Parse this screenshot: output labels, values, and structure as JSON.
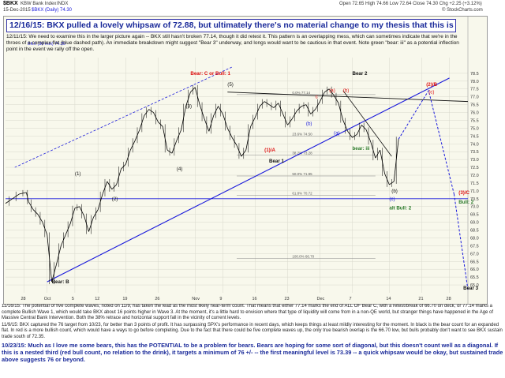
{
  "header": {
    "ticker": "$BKX",
    "name": "KBW Bank Index",
    "exchange": "INDX",
    "date": "15-Dec-2015",
    "studies": "$BKX (Daily) 74.30",
    "quote": "Open 72.65  High 74.66  Low 72.64  Close 74.30  Chg +2.25 (+3.12%)",
    "sc": "© StockCharts.com"
  },
  "banner": "12/16/15:  BKX pulled a lovely whipsaw of 72.88, but ultimately there's no material change to my thesis that this is a complex flat.",
  "annotation": "12/11/15: We need to examine this in the larger picture again -- BKX still hasn't broken 77.14, though it did retest it.  This pattern is an overlapping mess, which can sometimes indicate that we're in the throes of a complex flat (blue dashed path).  An immediate breakdown might suggest \"Bear 3\" underway, and longs would want to be cautious in that event.  Note green \"bear: iii\" as a potential inflection point in the event we rally off the open.",
  "ma_label": "BKX (30 min) 74.30",
  "colors": {
    "bg": "#f8f8ec",
    "candle": "#000000",
    "blue": "#1a1adb",
    "red": "#dd1111",
    "green": "#2a7a2a",
    "dash": "#1a1add",
    "grid": "#d8d8cc"
  },
  "chart_data": {
    "type": "line",
    "title": "",
    "xlabel": "",
    "ylabel": "",
    "xlim": [
      0,
      100
    ],
    "ylim": [
      64.5,
      79.5
    ],
    "grid": true,
    "yticks": [
      65.0,
      65.5,
      66.0,
      66.5,
      67.0,
      67.5,
      68.0,
      68.5,
      69.0,
      69.5,
      70.0,
      70.5,
      71.0,
      71.5,
      72.0,
      72.5,
      73.0,
      73.5,
      74.0,
      74.5,
      75.0,
      75.5,
      76.0,
      76.5,
      77.0,
      77.5,
      78.0,
      78.5
    ],
    "ytick_labels": [
      "65.0",
      "65.5",
      "66.0",
      "66.5",
      "67.0",
      "67.5",
      "68.0",
      "68.5",
      "69.0",
      "69.5",
      "70.0",
      "70.5",
      "71.0",
      "71.5",
      "72.0",
      "72.5",
      "73.0",
      "73.5",
      "74.0",
      "74.5",
      "75.0",
      "75.5",
      "76.0",
      "76.5",
      "77.0",
      "77.5",
      "78.0",
      "78.5"
    ],
    "xticks": [
      {
        "x": 4,
        "label": "28"
      },
      {
        "x": 9,
        "label": "Oct"
      },
      {
        "x": 15,
        "label": "5"
      },
      {
        "x": 20,
        "label": "12"
      },
      {
        "x": 26,
        "label": "19"
      },
      {
        "x": 33,
        "label": "26"
      },
      {
        "x": 41,
        "label": "Nov"
      },
      {
        "x": 47,
        "label": "9"
      },
      {
        "x": 54,
        "label": "16"
      },
      {
        "x": 61,
        "label": "23"
      },
      {
        "x": 68,
        "label": "Dec"
      },
      {
        "x": 75,
        "label": "7"
      },
      {
        "x": 83,
        "label": "14"
      },
      {
        "x": 90,
        "label": "21"
      },
      {
        "x": 96,
        "label": "28"
      }
    ],
    "series": [
      {
        "values_x": [
          0,
          1.5,
          3,
          4.5,
          5,
          6,
          7,
          8,
          9,
          10,
          11,
          12,
          13,
          14,
          15,
          16,
          17,
          18,
          19,
          20,
          21,
          22,
          23,
          24,
          25,
          26,
          27,
          28,
          29,
          30,
          31,
          32,
          33,
          34,
          35,
          36,
          37,
          38,
          39,
          40,
          41,
          42,
          43,
          44,
          45,
          46,
          47,
          48,
          49,
          50,
          51,
          52,
          53,
          54,
          55,
          56,
          57,
          58,
          59,
          60,
          61,
          62,
          63,
          64,
          65,
          66,
          67,
          68,
          69,
          70,
          71,
          72,
          73,
          74,
          75,
          76,
          77,
          78,
          79,
          80,
          81,
          82,
          83,
          84,
          85
        ],
        "values_y": [
          70.2,
          70.5,
          70.8,
          70.9,
          70.3,
          69.8,
          69.5,
          69.0,
          68.2,
          65.2,
          66.3,
          67.5,
          68.2,
          68.9,
          69.9,
          70.0,
          69.4,
          68.4,
          69.3,
          69.8,
          70.8,
          71.6,
          71.1,
          71.4,
          72.4,
          72.7,
          73.6,
          74.2,
          74.9,
          75.8,
          76.2,
          76.0,
          75.4,
          75.1,
          73.6,
          73.4,
          74.2,
          74.9,
          76.4,
          77.3,
          77.6,
          76.5,
          75.6,
          74.8,
          75.8,
          76.4,
          75.9,
          75.0,
          74.4,
          73.9,
          73.2,
          73.6,
          75.1,
          75.7,
          76.4,
          76.7,
          76.5,
          76.3,
          76.6,
          75.9,
          75.2,
          75.6,
          76.1,
          76.4,
          76.5,
          75.9,
          76.2,
          76.7,
          77.3,
          77.5,
          77.1,
          76.6,
          75.5,
          74.8,
          74.4,
          74.6,
          75.2,
          74.9,
          74.1,
          73.1,
          73.6,
          72.1,
          71.4,
          71.6,
          74.3
        ]
      }
    ],
    "horizontal_levels": [
      {
        "y": 77.14,
        "label": "0.0% 77.14"
      },
      {
        "y": 74.5,
        "label": "23.6% 74.50"
      },
      {
        "y": 73.28,
        "label": "38.2% 73.28"
      },
      {
        "y": 71.95,
        "label": "50.0% 71.95"
      },
      {
        "y": 70.72,
        "label": "61.8% 70.72"
      },
      {
        "y": 66.7,
        "label": "100.0% 66.70"
      }
    ],
    "wave_labels": [
      {
        "text": "Bear: C or Bull: 1",
        "x": 40,
        "y": 78.4,
        "color": "red"
      },
      {
        "text": "Bear 2",
        "x": 75,
        "y": 78.4,
        "color": "black"
      },
      {
        "text": "(2)/B",
        "x": 91,
        "y": 77.7,
        "color": "red"
      },
      {
        "text": "(c)",
        "x": 91.5,
        "y": 77.2,
        "color": "red"
      },
      {
        "text": "(5)",
        "x": 48,
        "y": 77.7,
        "color": "black"
      },
      {
        "text": "(a)",
        "x": 70,
        "y": 77.3,
        "color": "red"
      },
      {
        "text": "(b)",
        "x": 73,
        "y": 77.3,
        "color": "red"
      },
      {
        "text": "c",
        "x": 67,
        "y": 76.9,
        "color": "red"
      },
      {
        "text": "(4)",
        "x": 37,
        "y": 72.3,
        "color": "black"
      },
      {
        "text": "(3)",
        "x": 39,
        "y": 76.3,
        "color": "black"
      },
      {
        "text": "(2)",
        "x": 23,
        "y": 70.4,
        "color": "black"
      },
      {
        "text": "(1)",
        "x": 15,
        "y": 72.0,
        "color": "black"
      },
      {
        "text": "(1)/A",
        "x": 56,
        "y": 73.5,
        "color": "red"
      },
      {
        "text": "Bear 1",
        "x": 57,
        "y": 72.8,
        "color": "black"
      },
      {
        "text": "bear: iii",
        "x": 75,
        "y": 73.6,
        "color": "green"
      },
      {
        "text": "(a)",
        "x": 71,
        "y": 74.6,
        "color": "blue"
      },
      {
        "text": "(b)",
        "x": 65,
        "y": 75.2,
        "color": "blue"
      },
      {
        "text": "(c)",
        "x": 83,
        "y": 70.4,
        "color": "blue"
      },
      {
        "text": "(b)",
        "x": 83.5,
        "y": 70.9,
        "color": "black"
      },
      {
        "text": "alt Bull: 2",
        "x": 83,
        "y": 69.8,
        "color": "green"
      },
      {
        "text": "(3)/C",
        "x": 98,
        "y": 70.8,
        "color": "red"
      },
      {
        "text": "Bull: 2",
        "x": 98,
        "y": 70.2,
        "color": "green"
      },
      {
        "text": "Bear 3",
        "x": 99,
        "y": 64.7,
        "color": "black"
      },
      {
        "text": "Bear: B",
        "x": 10,
        "y": 65.1,
        "color": "black"
      }
    ],
    "trend_channel_lower": [
      {
        "x": 9,
        "y": 65.2
      },
      {
        "x": 96,
        "y": 78.2
      }
    ],
    "trend_channel_upper": [
      {
        "x": 2,
        "y": 72.5
      },
      {
        "x": 49,
        "y": 78.9
      }
    ],
    "resistance_line": [
      {
        "x": 48,
        "y": 77.3
      },
      {
        "x": 100,
        "y": 76.7
      }
    ],
    "support_line": [
      {
        "x": 0,
        "y": 70.5
      },
      {
        "x": 100,
        "y": 70.5
      }
    ],
    "projection_path": [
      {
        "x": 85,
        "y": 74.3
      },
      {
        "x": 91.5,
        "y": 77.4
      },
      {
        "x": 97,
        "y": 70.8
      }
    ]
  },
  "notes": [
    "11/16/15: The potential of five complete waves, noted on 11/9, has taken the lead as the most likely near-term count.  That means that either 77.14 marks the end of ALL OF Bear C, with a retest/break of 66.70 on deck, or 77.14 marks a complete Bullish Wave 1, which would take BKX about 16 points higher in Wave 3.  At the moment, it's a little hard to envision where that type of liquidity will come from in a non-QE world, but stranger things have happened in the Age of Massive Central Bank Intervention.  Both the 38% retrace and horizontal support fall in the vicinity of current levels.",
    "11/9/15: BKX captured the 76 target from 10/23, for better than 3 points of profit.  It has surpassing SPX's performance in recent days, which keeps things at least mildly interesting for the moment.  In black is the bear count for an expanded flat.  In red is a more bullish count, which would have a ways to go before completing.  Due to the fact that there could be five complete waves up, the only true bearish overlap is the 66.70 low, but bulls probably don't want to see BKX sustain trade south of 72.35.",
    "10/23/15: Much as I love me some bears, this has the POTENTIAL to be a problem for bears.  Bears are hoping for some sort of diagonal, but this doesn't count well as a diagonal.  If this is a nested third (red bull count, no relation to the drink), it targets a minimum of 76 +/- -- the first meaningful level is 73.39 -- a quick whipsaw would be okay, but sustained trade above suggests 76 or beyond."
  ]
}
